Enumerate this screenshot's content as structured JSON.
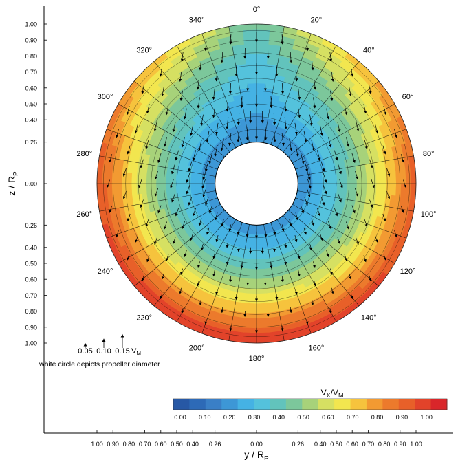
{
  "chart_data": {
    "type": "heatmap",
    "title": "",
    "xlabel": "y / R",
    "xlabel_sub": "P",
    "ylabel": "z / R",
    "ylabel_sub": "P",
    "x_tick_labels": [
      "1.00",
      "0.90",
      "0.80",
      "0.70",
      "0.60",
      "0.50",
      "0.40",
      "0.26",
      "0.00",
      "0.26",
      "0.40",
      "0.50",
      "0.60",
      "0.70",
      "0.80",
      "0.90",
      "1.00"
    ],
    "x_tick_values": [
      -1.0,
      -0.9,
      -0.8,
      -0.7,
      -0.6,
      -0.5,
      -0.4,
      -0.26,
      0.0,
      0.26,
      0.4,
      0.5,
      0.6,
      0.7,
      0.8,
      0.9,
      1.0
    ],
    "y_tick_labels": [
      "1.00",
      "0.90",
      "0.80",
      "0.70",
      "0.60",
      "0.50",
      "0.40",
      "0.26",
      "0.00",
      "0.26",
      "0.40",
      "0.50",
      "0.60",
      "0.70",
      "0.80",
      "0.90",
      "1.00"
    ],
    "y_tick_values": [
      1.0,
      0.9,
      0.8,
      0.7,
      0.6,
      0.5,
      0.4,
      0.26,
      0.0,
      -0.26,
      -0.4,
      -0.5,
      -0.6,
      -0.7,
      -0.8,
      -0.9,
      -1.0
    ],
    "hub_radius": 0.26,
    "outer_radius": 1.0,
    "angle_labels": [
      "0°",
      "20°",
      "40°",
      "60°",
      "80°",
      "100°",
      "120°",
      "140°",
      "160°",
      "180°",
      "200°",
      "220°",
      "240°",
      "260°",
      "280°",
      "300°",
      "320°",
      "340°"
    ],
    "angles_deg": [
      0,
      20,
      40,
      60,
      80,
      100,
      120,
      140,
      160,
      180,
      200,
      220,
      240,
      260,
      280,
      300,
      320,
      340
    ],
    "colorbar": {
      "label": "V",
      "label_sub": "X",
      "label_sep": "/V",
      "label_sub2": "M",
      "ticks": [
        "0.00",
        "0.10",
        "0.20",
        "0.30",
        "0.40",
        "0.50",
        "0.60",
        "0.70",
        "0.80",
        "0.90",
        "1.00"
      ],
      "range": [
        0.0,
        1.0
      ],
      "colors": [
        "#2758a5",
        "#2d6ab7",
        "#3a7fc6",
        "#3d97d6",
        "#45b2e4",
        "#54c2dc",
        "#62c3bc",
        "#7cc79b",
        "#a7d27a",
        "#d6e062",
        "#f2e64f",
        "#f6c33d",
        "#f29a32",
        "#ec7a2c",
        "#e86029",
        "#e2432a",
        "#d9262a"
      ]
    },
    "field": {
      "hub_value": 0.2,
      "angular_anchors_deg": [
        0,
        20,
        40,
        60,
        80,
        100,
        120,
        140,
        160,
        180,
        200,
        220,
        240,
        260,
        280,
        300,
        320,
        340,
        360
      ],
      "outer_values": [
        0.4,
        0.56,
        0.68,
        0.77,
        0.84,
        0.87,
        0.89,
        0.93,
        0.95,
        0.96,
        0.96,
        0.95,
        0.93,
        0.89,
        0.87,
        0.77,
        0.68,
        0.56,
        0.4
      ]
    },
    "vector_scale": {
      "labels": [
        "0.05",
        "0.10",
        "0.15"
      ],
      "values": [
        0.05,
        0.1,
        0.15
      ],
      "unit": "V",
      "unit_sub": "M"
    },
    "annotation": "white circle depicts propeller diameter"
  }
}
